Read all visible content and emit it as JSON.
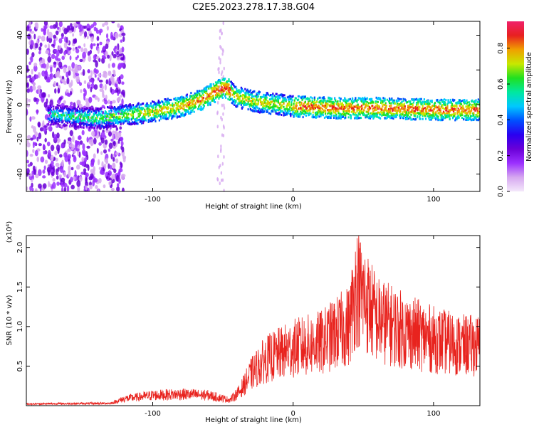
{
  "figure_title": "C2E5.2023.278.17.38.G04",
  "colors": {
    "snr_line": "#e8231e",
    "colormap": [
      "#f4e8fb",
      "#d6a8f0",
      "#9b30ff",
      "#6a00d8",
      "#2a00f0",
      "#0050ff",
      "#00c8ff",
      "#00e8a0",
      "#20e020",
      "#c8e800",
      "#f0a000",
      "#e82020",
      "#f0206a"
    ]
  },
  "chart_data": [
    {
      "type": "heatmap",
      "xlabel": "Height of straight line (km)",
      "ylabel": "Frequency (Hz)",
      "xlim": [
        -190,
        133
      ],
      "ylim": [
        -50,
        48
      ],
      "x_ticks": [
        -100,
        0,
        100
      ],
      "y_ticks": [
        -40,
        -20,
        0,
        20,
        40
      ],
      "colorbar": {
        "label": "Normalized spectral amplitude",
        "range": [
          0,
          0.95
        ],
        "ticks": [
          0.0,
          0.2,
          0.4,
          0.6,
          0.8
        ]
      },
      "ridge": {
        "note_points": [
          [
            -170,
            -6
          ],
          [
            -140,
            -8
          ],
          [
            -120,
            -6
          ],
          [
            -100,
            -4
          ],
          [
            -80,
            -1
          ],
          [
            -65,
            3
          ],
          [
            -55,
            8
          ],
          [
            -48,
            10
          ],
          [
            -42,
            5
          ],
          [
            -30,
            2
          ],
          [
            0,
            -1
          ],
          [
            30,
            -2
          ],
          [
            60,
            -2
          ],
          [
            100,
            -3
          ],
          [
            133,
            -3
          ]
        ]
      }
    },
    {
      "type": "line",
      "xlabel": "Height of straight line (km)",
      "ylabel": "SNR (10 * v/v)",
      "y_multiplier_label": "(x10⁴)",
      "xlim": [
        -190,
        133
      ],
      "ylim": [
        0,
        2.15
      ],
      "x_ticks": [
        -100,
        0,
        100
      ],
      "y_ticks": [
        0.5,
        1.0,
        1.5,
        2.0
      ],
      "envelope": {
        "x": [
          -190,
          -130,
          -120,
          -100,
          -80,
          -60,
          -45,
          -38,
          -30,
          -20,
          -10,
          0,
          20,
          40,
          45,
          60,
          80,
          100,
          120,
          133
        ],
        "y": [
          0.03,
          0.04,
          0.12,
          0.18,
          0.2,
          0.18,
          0.1,
          0.25,
          0.55,
          0.8,
          0.9,
          1.0,
          1.1,
          1.4,
          2.1,
          1.5,
          1.3,
          1.15,
          1.05,
          1.05
        ]
      }
    }
  ]
}
